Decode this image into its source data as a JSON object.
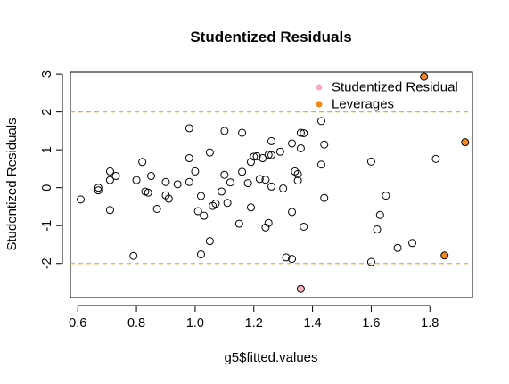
{
  "chart_data": {
    "type": "scatter",
    "title": "Studentized Residuals",
    "xlabel": "g5$fitted.values",
    "ylabel": "Studentized Residuals",
    "xlim": [
      0.575,
      1.945
    ],
    "ylim": [
      -2.9,
      3.05
    ],
    "xticks": [
      0.6,
      0.8,
      1.0,
      1.2,
      1.4,
      1.6,
      1.8
    ],
    "xtick_labels": [
      "0.6",
      "0.8",
      "1.0",
      "1.2",
      "1.4",
      "1.6",
      "1.8"
    ],
    "yticks": [
      -2,
      -1,
      0,
      1,
      2,
      3
    ],
    "ytick_labels": [
      "-2",
      "-1",
      "0",
      "1",
      "2",
      "3"
    ],
    "reference_lines": [
      {
        "y": 2,
        "color": "#f4a637",
        "style": "dashed"
      },
      {
        "y": -2,
        "color": "#f4a637",
        "style": "dashed"
      }
    ],
    "legend": {
      "position": "top-right",
      "entries": [
        {
          "label": "Studentized Residual",
          "color": "#f4b0bd"
        },
        {
          "label": "Leverages",
          "color": "#f38b1e"
        }
      ]
    },
    "series": [
      {
        "style": "open-circle",
        "color": "#000000",
        "points": [
          [
            0.61,
            -0.31
          ],
          [
            0.67,
            -0.07
          ],
          [
            0.67,
            0.0
          ],
          [
            0.71,
            0.43
          ],
          [
            0.71,
            0.2
          ],
          [
            0.71,
            -0.59
          ],
          [
            0.73,
            0.31
          ],
          [
            0.79,
            -1.8
          ],
          [
            0.8,
            0.2
          ],
          [
            0.82,
            0.68
          ],
          [
            0.83,
            -0.1
          ],
          [
            0.84,
            -0.13
          ],
          [
            0.85,
            0.31
          ],
          [
            0.87,
            -0.56
          ],
          [
            0.9,
            0.15
          ],
          [
            0.9,
            -0.2
          ],
          [
            0.91,
            -0.29
          ],
          [
            0.94,
            0.09
          ],
          [
            0.98,
            1.57
          ],
          [
            0.98,
            0.78
          ],
          [
            0.98,
            0.15
          ],
          [
            1.0,
            0.43
          ],
          [
            1.01,
            -0.62
          ],
          [
            1.02,
            -1.76
          ],
          [
            1.02,
            -0.22
          ],
          [
            1.03,
            -0.74
          ],
          [
            1.05,
            0.93
          ],
          [
            1.05,
            -1.41
          ],
          [
            1.06,
            -0.48
          ],
          [
            1.07,
            -0.42
          ],
          [
            1.09,
            -0.1
          ],
          [
            1.1,
            1.5
          ],
          [
            1.1,
            0.34
          ],
          [
            1.11,
            -0.4
          ],
          [
            1.12,
            0.14
          ],
          [
            1.15,
            -0.95
          ],
          [
            1.16,
            1.45
          ],
          [
            1.16,
            0.42
          ],
          [
            1.18,
            0.12
          ],
          [
            1.19,
            0.68
          ],
          [
            1.19,
            -0.52
          ],
          [
            1.2,
            0.82
          ],
          [
            1.21,
            0.83
          ],
          [
            1.22,
            0.23
          ],
          [
            1.23,
            0.78
          ],
          [
            1.24,
            0.21
          ],
          [
            1.24,
            -1.05
          ],
          [
            1.25,
            -0.93
          ],
          [
            1.25,
            0.87
          ],
          [
            1.26,
            1.23
          ],
          [
            1.26,
            0.86
          ],
          [
            1.26,
            0.03
          ],
          [
            1.29,
            0.95
          ],
          [
            1.3,
            -0.02
          ],
          [
            1.31,
            -1.84
          ],
          [
            1.33,
            1.17
          ],
          [
            1.33,
            -1.88
          ],
          [
            1.33,
            -0.64
          ],
          [
            1.34,
            0.43
          ],
          [
            1.35,
            0.36
          ],
          [
            1.35,
            0.19
          ],
          [
            1.36,
            1.04
          ],
          [
            1.36,
            1.45
          ],
          [
            1.37,
            1.44
          ],
          [
            1.37,
            -1.03
          ],
          [
            1.43,
            1.76
          ],
          [
            1.43,
            0.61
          ],
          [
            1.44,
            1.14
          ],
          [
            1.44,
            -0.27
          ],
          [
            1.6,
            0.69
          ],
          [
            1.6,
            -1.96
          ],
          [
            1.62,
            -1.1
          ],
          [
            1.63,
            -0.72
          ],
          [
            1.65,
            -0.21
          ],
          [
            1.69,
            -1.59
          ],
          [
            1.74,
            -1.46
          ],
          [
            1.82,
            0.76
          ]
        ]
      },
      {
        "name": "Studentized Residual",
        "style": "filled-circle",
        "color": "#f4b0bd",
        "points": [
          [
            1.36,
            -2.67
          ]
        ]
      },
      {
        "name": "Leverages",
        "style": "filled-circle",
        "color": "#f38b1e",
        "points": [
          [
            1.78,
            2.93
          ],
          [
            1.92,
            1.2
          ],
          [
            1.85,
            -1.79
          ]
        ]
      }
    ],
    "grid": false
  }
}
